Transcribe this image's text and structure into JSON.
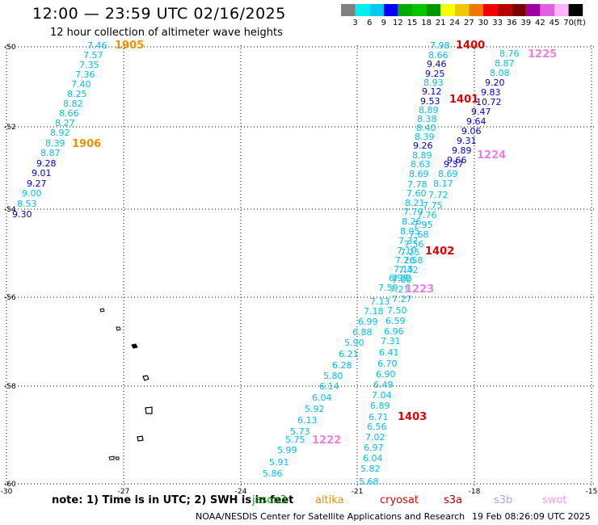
{
  "title": "12:00 — 23:59 UTC 02/16/2025",
  "subtitle": "12 hour collection of altimeter wave heights",
  "colorbar": {
    "labels": [
      "3",
      "6",
      "9",
      "12",
      "15",
      "18",
      "21",
      "24",
      "27",
      "30",
      "33",
      "36",
      "39",
      "42",
      "45",
      "70"
    ],
    "unit": "(ft)",
    "colors": [
      "#808080",
      "#00f0f0",
      "#00c8f0",
      "#0000ff",
      "#00aa00",
      "#00c800",
      "#009600",
      "#ffff00",
      "#f0c800",
      "#f07800",
      "#f00000",
      "#b40000",
      "#780000",
      "#a000a0",
      "#e060e0",
      "#ffb4ff",
      "#000000"
    ]
  },
  "axes": {
    "lon_ticks": [
      "-30",
      "-27",
      "-24",
      "-21",
      "-18",
      "-15"
    ],
    "lat_ticks": [
      "-50",
      "-52",
      "-54",
      "-56",
      "-58",
      "-60"
    ]
  },
  "note": "note:  1) Time is in UTC; 2) SWH is in feet",
  "missions": [
    {
      "name": "jason3",
      "color": "#00a000"
    },
    {
      "name": "altika",
      "color": "#f09000"
    },
    {
      "name": "cryosat",
      "color": "#e00000"
    },
    {
      "name": "s3a",
      "color": "#b00000"
    },
    {
      "name": "s3b",
      "color": "#b0a0ff"
    },
    {
      "name": "swot",
      "color": "#f0a0f0"
    }
  ],
  "footer": {
    "center": "NOAA/NESDIS Center for Satellite Applications and Research",
    "timestamp": "19 Feb 08:26:09 UTC 2025"
  },
  "tracks": [
    {
      "id": "1905",
      "color": "#f09000"
    },
    {
      "id": "1906",
      "color": "#f09000"
    },
    {
      "id": "1400",
      "color": "#e00000"
    },
    {
      "id": "1401",
      "color": "#e00000"
    },
    {
      "id": "1402",
      "color": "#e00000"
    },
    {
      "id": "1403",
      "color": "#e00000"
    },
    {
      "id": "1225",
      "color": "#f080e0"
    },
    {
      "id": "1224",
      "color": "#f080e0"
    },
    {
      "id": "1223",
      "color": "#f080e0"
    },
    {
      "id": "1222",
      "color": "#f080e0"
    }
  ],
  "swh_values": [
    {
      "v": "7.46",
      "c": "#00c0f0"
    },
    {
      "v": "7.57",
      "c": "#00c0f0"
    },
    {
      "v": "7.35",
      "c": "#00c0f0"
    },
    {
      "v": "7.36",
      "c": "#00c0f0"
    },
    {
      "v": "7.40",
      "c": "#00c0f0"
    },
    {
      "v": "8.25",
      "c": "#00c0f0"
    },
    {
      "v": "8.82",
      "c": "#00c0f0"
    },
    {
      "v": "8.66",
      "c": "#00c0f0"
    },
    {
      "v": "8.27",
      "c": "#00c0f0"
    },
    {
      "v": "8.92",
      "c": "#00c0f0"
    },
    {
      "v": "8.39",
      "c": "#00c0f0"
    },
    {
      "v": "8.87",
      "c": "#00c0f0"
    },
    {
      "v": "9.28",
      "c": "#0000d0"
    },
    {
      "v": "9.01",
      "c": "#0000d0"
    },
    {
      "v": "9.27",
      "c": "#0000d0"
    },
    {
      "v": "9.00",
      "c": "#00c0f0"
    },
    {
      "v": "8.53",
      "c": "#00c0f0"
    },
    {
      "v": "9.30",
      "c": "#0000d0"
    },
    {
      "v": "7.98",
      "c": "#00c0f0"
    },
    {
      "v": "8.66",
      "c": "#00c0f0"
    },
    {
      "v": "9.46",
      "c": "#0000d0"
    },
    {
      "v": "9.25",
      "c": "#0000d0"
    },
    {
      "v": "8.93",
      "c": "#00c0f0"
    },
    {
      "v": "9.12",
      "c": "#0000d0"
    },
    {
      "v": "9.53",
      "c": "#0000d0"
    },
    {
      "v": "8.89",
      "c": "#00c0f0"
    },
    {
      "v": "8.38",
      "c": "#00c0f0"
    },
    {
      "v": "8.40",
      "c": "#00c0f0"
    },
    {
      "v": "8.39",
      "c": "#00c0f0"
    },
    {
      "v": "9.26",
      "c": "#0000d0"
    },
    {
      "v": "8.89",
      "c": "#00c0f0"
    },
    {
      "v": "8.63",
      "c": "#00c0f0"
    },
    {
      "v": "8.69",
      "c": "#00c0f0"
    },
    {
      "v": "7.78",
      "c": "#00c0f0"
    },
    {
      "v": "7.60",
      "c": "#00c0f0"
    },
    {
      "v": "8.21",
      "c": "#00c0f0"
    },
    {
      "v": "7.79",
      "c": "#00c0f0"
    },
    {
      "v": "8.26",
      "c": "#00c0f0"
    },
    {
      "v": "8.05",
      "c": "#00c0f0"
    },
    {
      "v": "7.37",
      "c": "#00c0f0"
    },
    {
      "v": "7.10",
      "c": "#00c0f0"
    },
    {
      "v": "7.26",
      "c": "#00c0f0"
    },
    {
      "v": "7.15",
      "c": "#00c0f0"
    },
    {
      "v": "7.72",
      "c": "#00c0f0"
    },
    {
      "v": "6.97",
      "c": "#00c0f0"
    },
    {
      "v": "7.59",
      "c": "#00c0f0"
    },
    {
      "v": "7.13",
      "c": "#00c0f0"
    },
    {
      "v": "7.18",
      "c": "#00c0f0"
    },
    {
      "v": "6.99",
      "c": "#00c0f0"
    },
    {
      "v": "6.88",
      "c": "#00c0f0"
    },
    {
      "v": "5.90",
      "c": "#00c0f0"
    },
    {
      "v": "6.21",
      "c": "#00c0f0"
    },
    {
      "v": "6.28",
      "c": "#00c0f0"
    },
    {
      "v": "5.80",
      "c": "#00c0f0"
    },
    {
      "v": "6.14",
      "c": "#00c0f0"
    },
    {
      "v": "6.04",
      "c": "#00c0f0"
    },
    {
      "v": "5.92",
      "c": "#00c0f0"
    },
    {
      "v": "6.13",
      "c": "#00c0f0"
    },
    {
      "v": "5.73",
      "c": "#00c0f0"
    },
    {
      "v": "5.75",
      "c": "#00c0f0"
    },
    {
      "v": "5.99",
      "c": "#00c0f0"
    },
    {
      "v": "5.91",
      "c": "#00c0f0"
    },
    {
      "v": "5.86",
      "c": "#00c0f0"
    },
    {
      "v": "8.76",
      "c": "#00c0f0"
    },
    {
      "v": "8.87",
      "c": "#00c0f0"
    },
    {
      "v": "8.08",
      "c": "#00c0f0"
    },
    {
      "v": "9.20",
      "c": "#0000d0"
    },
    {
      "v": "9.83",
      "c": "#0000d0"
    },
    {
      "v": "10.72",
      "c": "#0000d0"
    },
    {
      "v": "9.47",
      "c": "#0000d0"
    },
    {
      "v": "9.64",
      "c": "#0000d0"
    },
    {
      "v": "9.06",
      "c": "#0000d0"
    },
    {
      "v": "9.31",
      "c": "#0000d0"
    },
    {
      "v": "9.89",
      "c": "#0000d0"
    },
    {
      "v": "9.66",
      "c": "#0000d0"
    },
    {
      "v": "9.37",
      "c": "#0000d0"
    },
    {
      "v": "8.69",
      "c": "#00c0f0"
    },
    {
      "v": "8.17",
      "c": "#00c0f0"
    },
    {
      "v": "7.72",
      "c": "#00c0f0"
    },
    {
      "v": "7.75",
      "c": "#00c0f0"
    },
    {
      "v": "7.76",
      "c": "#00c0f0"
    },
    {
      "v": "7.95",
      "c": "#00c0f0"
    },
    {
      "v": "7.68",
      "c": "#00c0f0"
    },
    {
      "v": "7.56",
      "c": "#00c0f0"
    },
    {
      "v": "7.25",
      "c": "#00c0f0"
    },
    {
      "v": "7.58",
      "c": "#00c0f0"
    },
    {
      "v": "7.42",
      "c": "#00c0f0"
    },
    {
      "v": "7.00",
      "c": "#00c0f0"
    },
    {
      "v": "7.21",
      "c": "#00c0f0"
    },
    {
      "v": "7.27",
      "c": "#00c0f0"
    },
    {
      "v": "7.50",
      "c": "#00c0f0"
    },
    {
      "v": "6.59",
      "c": "#00c0f0"
    },
    {
      "v": "6.96",
      "c": "#00c0f0"
    },
    {
      "v": "7.31",
      "c": "#00c0f0"
    },
    {
      "v": "6.41",
      "c": "#00c0f0"
    },
    {
      "v": "6.70",
      "c": "#00c0f0"
    },
    {
      "v": "6.90",
      "c": "#00c0f0"
    },
    {
      "v": "6.49",
      "c": "#00c0f0"
    },
    {
      "v": "7.04",
      "c": "#00c0f0"
    },
    {
      "v": "6.89",
      "c": "#00c0f0"
    },
    {
      "v": "6.71",
      "c": "#00c0f0"
    },
    {
      "v": "6.56",
      "c": "#00c0f0"
    },
    {
      "v": "7.02",
      "c": "#00c0f0"
    },
    {
      "v": "6.97",
      "c": "#00c0f0"
    },
    {
      "v": "6.04",
      "c": "#00c0f0"
    },
    {
      "v": "5.82",
      "c": "#00c0f0"
    },
    {
      "v": "5.68",
      "c": "#00c0f0"
    }
  ]
}
